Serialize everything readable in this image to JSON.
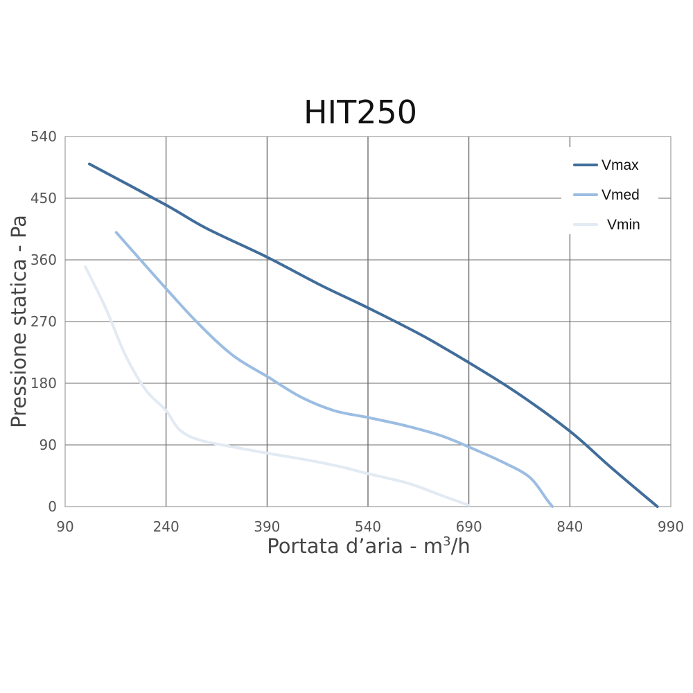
{
  "chart_data": {
    "type": "line",
    "title": "HIT250",
    "xlabel": "Portata d’aria - m",
    "xlabel_sup": "3",
    "xlabel_suffix": "/h",
    "ylabel": "Pressione statica - Pa",
    "xlim": [
      90,
      990
    ],
    "ylim": [
      0,
      540
    ],
    "x_ticks": [
      "90",
      "240",
      "390",
      "540",
      "690",
      "840",
      "990"
    ],
    "y_ticks": [
      "0",
      "90",
      "180",
      "270",
      "360",
      "450",
      "540"
    ],
    "grid": true,
    "legend_position": "top-right",
    "series": [
      {
        "name": "Vmax",
        "color": "#416d9a",
        "points": [
          [
            126,
            500
          ],
          [
            240,
            440
          ],
          [
            300,
            406
          ],
          [
            390,
            364
          ],
          [
            470,
            323
          ],
          [
            540,
            290
          ],
          [
            620,
            250
          ],
          [
            690,
            210
          ],
          [
            760,
            167
          ],
          [
            840,
            110
          ],
          [
            900,
            58
          ],
          [
            970,
            0
          ]
        ]
      },
      {
        "name": "Vmed",
        "color": "#9cbde2",
        "points": [
          [
            166,
            400
          ],
          [
            240,
            318
          ],
          [
            290,
            265
          ],
          [
            340,
            220
          ],
          [
            390,
            190
          ],
          [
            440,
            160
          ],
          [
            490,
            140
          ],
          [
            540,
            130
          ],
          [
            600,
            117
          ],
          [
            650,
            103
          ],
          [
            690,
            87
          ],
          [
            740,
            65
          ],
          [
            780,
            43
          ],
          [
            806,
            10
          ],
          [
            814,
            0
          ]
        ]
      },
      {
        "name": "Vmin",
        "color": "#e2eaf3",
        "points": [
          [
            120,
            350
          ],
          [
            150,
            290
          ],
          [
            180,
            220
          ],
          [
            210,
            170
          ],
          [
            240,
            140
          ],
          [
            260,
            112
          ],
          [
            290,
            97
          ],
          [
            340,
            87
          ],
          [
            390,
            78
          ],
          [
            450,
            68
          ],
          [
            500,
            58
          ],
          [
            540,
            48
          ],
          [
            600,
            34
          ],
          [
            650,
            16
          ],
          [
            690,
            2
          ]
        ]
      }
    ]
  }
}
